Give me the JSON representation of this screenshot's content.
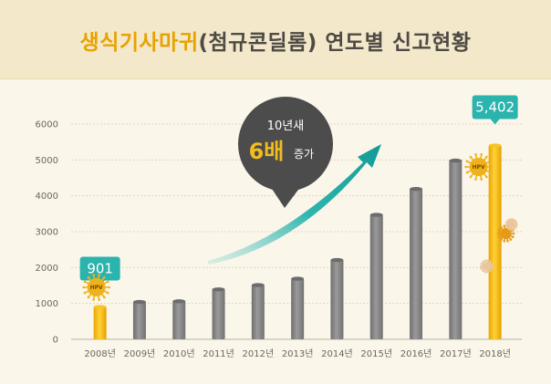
{
  "header": {
    "title_highlight": "생식기사마귀",
    "title_rest": "(첨규콘딜롬) 연도별 신고현황"
  },
  "chart_data": {
    "type": "bar",
    "categories": [
      "2008년",
      "2009년",
      "2010년",
      "2011년",
      "2012년",
      "2013년",
      "2014년",
      "2015년",
      "2016년",
      "2017년",
      "2018년"
    ],
    "values": [
      901,
      1040,
      1060,
      1390,
      1510,
      1690,
      2210,
      3470,
      4190,
      4980,
      5402
    ],
    "ylim": [
      0,
      6000
    ],
    "yticks": [
      0,
      1000,
      2000,
      3000,
      4000,
      5000,
      6000
    ],
    "grid": true,
    "highlight_color": "#f2b705",
    "bar_color": "#8b8b8b",
    "annotations": {
      "first_value_label": "901",
      "last_value_label": "5,402",
      "bubble_line1": "10년새",
      "bubble_big": "6배",
      "bubble_suffix": "증가",
      "virus_label": "HPV"
    },
    "callout_color": "#2bb3ad",
    "arrow_color": "#1ea5a0"
  }
}
